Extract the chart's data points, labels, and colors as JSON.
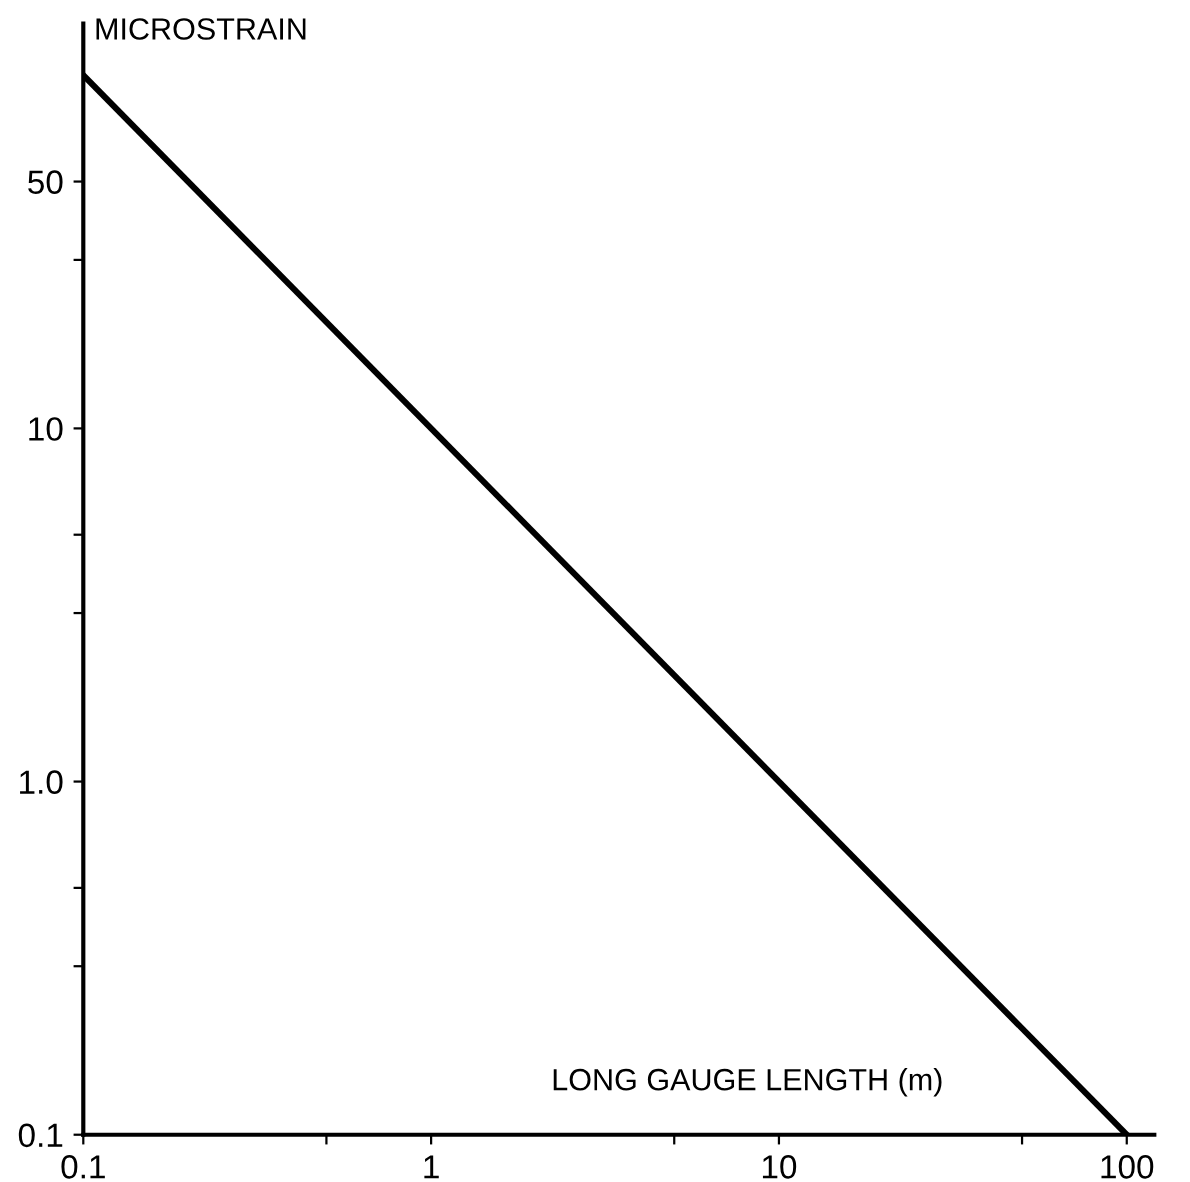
{
  "chart_data": {
    "type": "line",
    "xlabel": "LONG GAUGE LENGTH (m)",
    "ylabel": "MICROSTRAIN",
    "log": "xy",
    "x": [
      0.1,
      100
    ],
    "series": [
      {
        "color": "#000000",
        "values": [
          100,
          0.1
        ]
      }
    ],
    "xlim": [
      0.1,
      120
    ],
    "ylim": [
      0.1,
      140
    ],
    "xticks": [
      0.1,
      1,
      10,
      100,
      {
        "value": 0.5,
        "label": null
      },
      {
        "value": 5,
        "label": null
      },
      {
        "value": 50,
        "label": null
      }
    ],
    "yticks": [
      0.1,
      {
        "value": 1,
        "label": "1.0"
      },
      10,
      50,
      {
        "value": 0.3,
        "label": null
      },
      {
        "value": 0.5,
        "label": null
      },
      {
        "value": 3,
        "label": null
      },
      {
        "value": 5,
        "label": null
      },
      {
        "value": 30,
        "label": null
      }
    ],
    "grid": false,
    "legend": false,
    "marker": "none",
    "line_style": "solid"
  }
}
